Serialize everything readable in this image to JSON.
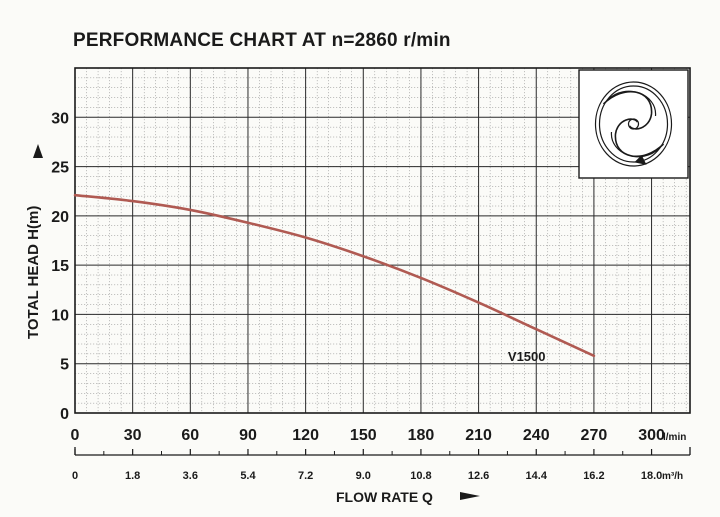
{
  "chart_data": {
    "type": "line",
    "title": "PERFORMANCE CHART AT n=2860 r/min",
    "ylabel": "TOTAL HEAD H(m)",
    "xlabel": "FLOW RATE Q",
    "x_unit": "l/min",
    "x2_unit": "m³/h",
    "xlim": [
      0,
      320
    ],
    "ylim": [
      0,
      35
    ],
    "grid": true,
    "x_ticks": [
      "0",
      "30",
      "60",
      "90",
      "120",
      "150",
      "180",
      "210",
      "240",
      "270",
      "300"
    ],
    "x2_ticks": [
      "0",
      "1.8",
      "3.6",
      "5.4",
      "7.2",
      "9.0",
      "10.8",
      "12.6",
      "14.4",
      "16.2",
      "18.0"
    ],
    "y_ticks": [
      "0",
      "5",
      "10",
      "15",
      "20",
      "25",
      "30"
    ],
    "series": [
      {
        "name": "V1500",
        "color": "#b05a52",
        "x": [
          0,
          30,
          60,
          90,
          120,
          150,
          180,
          210,
          240,
          270
        ],
        "y": [
          22.1,
          21.5,
          20.6,
          19.3,
          17.8,
          15.9,
          13.7,
          11.2,
          8.5,
          5.8
        ]
      }
    ],
    "inset_icon": "impeller-icon"
  }
}
